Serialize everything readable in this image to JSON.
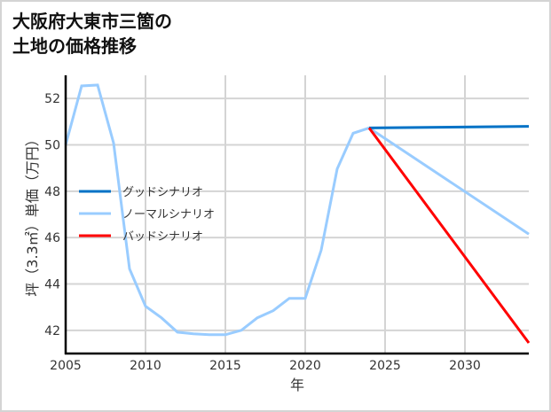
{
  "title": {
    "line1": "大阪府大東市三箇の",
    "line2": "土地の価格推移"
  },
  "axes": {
    "xlabel": "年",
    "ylabel": "坪（3.3㎡）単価（万円）",
    "xticks": [
      "2005",
      "2010",
      "2015",
      "2020",
      "2025",
      "2030"
    ],
    "yticks": [
      "42",
      "44",
      "46",
      "48",
      "50",
      "52"
    ]
  },
  "legend": [
    {
      "label": "グッドシナリオ",
      "color": "#0072c6"
    },
    {
      "label": "ノーマルシナリオ",
      "color": "#99ccff"
    },
    {
      "label": "バッドシナリオ",
      "color": "#ff0000"
    }
  ],
  "chart_data": {
    "type": "line",
    "title": "大阪府大東市三箇の土地の価格推移",
    "xlabel": "年",
    "ylabel": "坪（3.3㎡）単価（万円）",
    "xlim": [
      2005,
      2034
    ],
    "ylim": [
      41,
      53
    ],
    "grid": true,
    "legend_position": "left-middle",
    "series": [
      {
        "name": "ノーマルシナリオ",
        "color": "#99ccff",
        "x": [
          2005,
          2006,
          2007,
          2008,
          2009,
          2010,
          2011,
          2012,
          2013,
          2014,
          2015,
          2016,
          2017,
          2018,
          2019,
          2020,
          2021,
          2022,
          2023,
          2024,
          2034
        ],
        "values": [
          50.0,
          52.54,
          52.58,
          50.08,
          44.65,
          43.04,
          42.54,
          41.92,
          41.85,
          41.81,
          41.81,
          42.0,
          42.54,
          42.85,
          43.38,
          43.38,
          45.46,
          48.96,
          50.5,
          50.73,
          46.15
        ]
      },
      {
        "name": "グッドシナリオ",
        "color": "#0072c6",
        "x": [
          2024,
          2034
        ],
        "values": [
          50.73,
          50.8
        ]
      },
      {
        "name": "バッドシナリオ",
        "color": "#ff0000",
        "x": [
          2024,
          2034
        ],
        "values": [
          50.73,
          41.46
        ]
      }
    ]
  }
}
